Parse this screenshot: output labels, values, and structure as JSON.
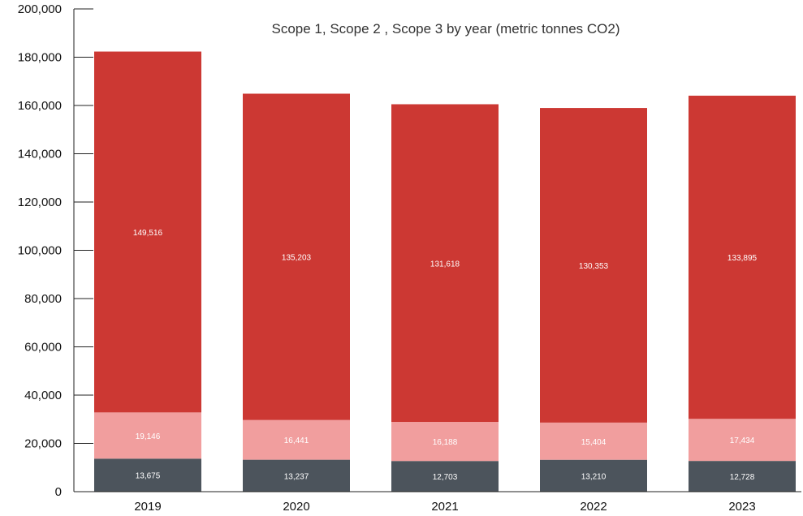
{
  "chart_data": {
    "type": "bar",
    "stacked": true,
    "title": "Scope 1, Scope 2 , Scope 3 by year (metric tonnes CO2)",
    "categories": [
      "2019",
      "2020",
      "2021",
      "2022",
      "2023"
    ],
    "series": [
      {
        "values": [
          13675,
          13237,
          12703,
          13210,
          12728
        ],
        "labels": [
          "13,675",
          "13,237",
          "12,703",
          "13,210",
          "12,728"
        ],
        "color": "#4c545c"
      },
      {
        "values": [
          19146,
          16441,
          16188,
          15404,
          17434
        ],
        "labels": [
          "19,146",
          "16,441",
          "16,188",
          "15,404",
          "17,434"
        ],
        "color": "#f19e9e"
      },
      {
        "values": [
          149516,
          135203,
          131618,
          130353,
          133895
        ],
        "labels": [
          "149,516",
          "135,203",
          "131,618",
          "130,353",
          "133,895"
        ],
        "color": "#cc3833"
      }
    ],
    "ylim": [
      0,
      200000
    ],
    "yticks": [
      0,
      20000,
      40000,
      60000,
      80000,
      100000,
      120000,
      140000,
      160000,
      180000,
      200000
    ],
    "ytick_labels": [
      "0",
      "20,000",
      "40,000",
      "60,000",
      "80,000",
      "100,000",
      "120,000",
      "140,000",
      "160,000",
      "180,000",
      "200,000"
    ],
    "grid": false,
    "legend": "none"
  }
}
